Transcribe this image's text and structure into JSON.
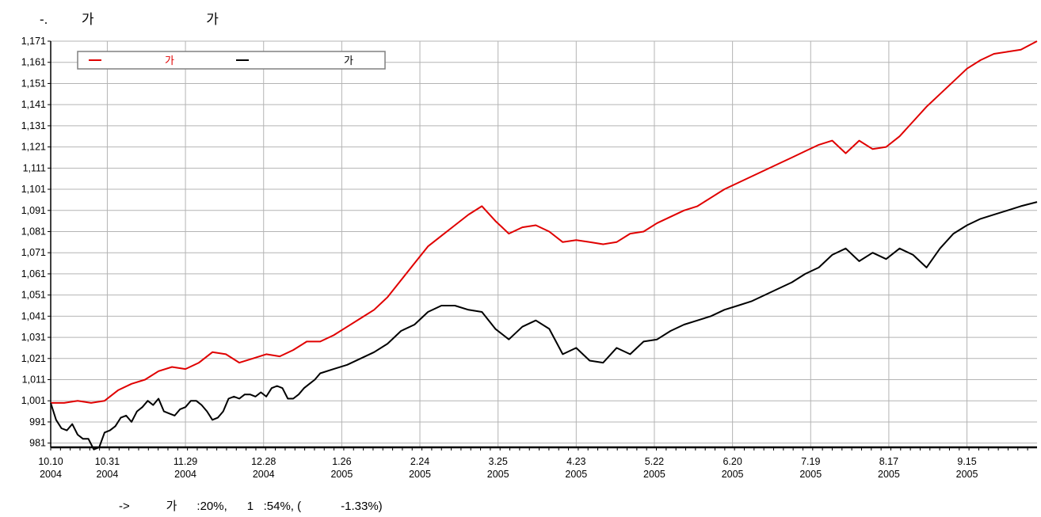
{
  "chart_data": {
    "type": "line",
    "title": "-.         가                              가",
    "footnote": "->           가      :20%,      1   :54%, (            -1.33%)",
    "ylim": [
      979,
      1171
    ],
    "y_ticks": [
      "1,171",
      "1,161",
      "1,151",
      "1,141",
      "1,131",
      "1,121",
      "1,111",
      "1,101",
      "1,091",
      "1,081",
      "1,071",
      "1,061",
      "1,051",
      "1,041",
      "1,031",
      "1,021",
      "1,011",
      "1,001",
      "991",
      "981"
    ],
    "x_ticks": [
      {
        "d1": "10.10",
        "d2": "2004"
      },
      {
        "d1": "10.31",
        "d2": "2004"
      },
      {
        "d1": "11.29",
        "d2": "2004"
      },
      {
        "d1": "12.28",
        "d2": "2004"
      },
      {
        "d1": "1.26",
        "d2": "2005"
      },
      {
        "d1": "2.24",
        "d2": "2005"
      },
      {
        "d1": "3.25",
        "d2": "2005"
      },
      {
        "d1": "4.23",
        "d2": "2005"
      },
      {
        "d1": "5.22",
        "d2": "2005"
      },
      {
        "d1": "6.20",
        "d2": "2005"
      },
      {
        "d1": "7.19",
        "d2": "2005"
      },
      {
        "d1": "8.17",
        "d2": "2005"
      },
      {
        "d1": "9.15",
        "d2": "2005"
      }
    ],
    "x_ticks_days": [
      0,
      21,
      50,
      79,
      108,
      137,
      166,
      195,
      224,
      253,
      282,
      311,
      340
    ],
    "x_range_days": [
      0,
      366
    ],
    "grid": true,
    "legend_position": "top-left",
    "series": [
      {
        "name": "가",
        "color": "#e00000",
        "x": [
          0,
          5,
          10,
          15,
          20,
          25,
          30,
          35,
          40,
          45,
          50,
          55,
          60,
          65,
          70,
          75,
          80,
          85,
          90,
          95,
          100,
          105,
          110,
          115,
          120,
          125,
          130,
          135,
          140,
          145,
          150,
          155,
          160,
          165,
          170,
          175,
          180,
          185,
          190,
          195,
          200,
          205,
          210,
          215,
          220,
          225,
          230,
          235,
          240,
          245,
          250,
          255,
          260,
          265,
          270,
          275,
          280,
          285,
          290,
          295,
          300,
          305,
          310,
          315,
          320,
          325,
          330,
          335,
          340,
          345,
          350,
          355,
          360,
          366
        ],
        "values": [
          1000,
          1000,
          1001,
          1000,
          1001,
          1006,
          1009,
          1011,
          1015,
          1017,
          1016,
          1019,
          1024,
          1023,
          1019,
          1021,
          1023,
          1022,
          1025,
          1029,
          1029,
          1032,
          1036,
          1040,
          1044,
          1050,
          1058,
          1066,
          1074,
          1079,
          1084,
          1089,
          1093,
          1086,
          1080,
          1083,
          1084,
          1081,
          1076,
          1077,
          1076,
          1075,
          1076,
          1080,
          1081,
          1085,
          1088,
          1091,
          1093,
          1097,
          1101,
          1104,
          1107,
          1110,
          1113,
          1116,
          1119,
          1122,
          1124,
          1118,
          1124,
          1120,
          1121,
          1126,
          1133,
          1140,
          1146,
          1152,
          1158,
          1162,
          1165,
          1166,
          1167,
          1171
        ]
      },
      {
        "name": "가",
        "color": "#000000",
        "x": [
          0,
          2,
          4,
          6,
          8,
          10,
          12,
          14,
          16,
          18,
          20,
          22,
          24,
          26,
          28,
          30,
          32,
          34,
          36,
          38,
          40,
          42,
          44,
          46,
          48,
          50,
          52,
          54,
          56,
          58,
          60,
          62,
          64,
          66,
          68,
          70,
          72,
          74,
          76,
          78,
          80,
          82,
          84,
          86,
          88,
          90,
          92,
          94,
          96,
          98,
          100,
          105,
          110,
          115,
          120,
          125,
          130,
          135,
          140,
          145,
          150,
          155,
          160,
          165,
          170,
          175,
          180,
          185,
          190,
          195,
          200,
          205,
          210,
          215,
          220,
          225,
          230,
          235,
          240,
          245,
          250,
          255,
          260,
          265,
          270,
          275,
          280,
          285,
          290,
          295,
          300,
          305,
          310,
          315,
          320,
          325,
          330,
          335,
          340,
          345,
          350,
          355,
          360,
          366
        ],
        "values": [
          1000,
          992,
          988,
          987,
          990,
          985,
          983,
          983,
          978,
          979,
          986,
          987,
          989,
          993,
          994,
          991,
          996,
          998,
          1001,
          999,
          1002,
          996,
          995,
          994,
          997,
          998,
          1001,
          1001,
          999,
          996,
          992,
          993,
          996,
          1002,
          1003,
          1002,
          1004,
          1004,
          1003,
          1005,
          1003,
          1007,
          1008,
          1007,
          1002,
          1002,
          1004,
          1007,
          1009,
          1011,
          1014,
          1016,
          1018,
          1021,
          1024,
          1028,
          1034,
          1037,
          1043,
          1046,
          1046,
          1044,
          1043,
          1035,
          1030,
          1036,
          1039,
          1035,
          1023,
          1026,
          1020,
          1019,
          1026,
          1023,
          1029,
          1030,
          1034,
          1037,
          1039,
          1041,
          1044,
          1046,
          1048,
          1051,
          1054,
          1057,
          1061,
          1064,
          1070,
          1073,
          1067,
          1071,
          1068,
          1073,
          1070,
          1064,
          1073,
          1080,
          1084,
          1087,
          1089,
          1091,
          1093,
          1095
        ]
      }
    ]
  }
}
